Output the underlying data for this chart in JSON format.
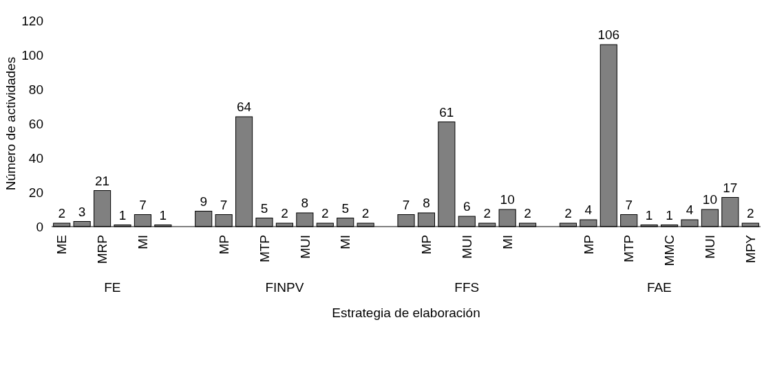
{
  "chart_data": {
    "type": "bar",
    "xlabel": "Estrategia de elaboración",
    "ylabel": "Número de actividades",
    "categories": [
      "ME",
      null,
      "MRP",
      null,
      "MI",
      null,
      null,
      null,
      "MP",
      null,
      "MTP",
      null,
      "MUI",
      null,
      "MI",
      null,
      null,
      null,
      "MP",
      null,
      "MUI",
      null,
      "MI",
      null,
      null,
      null,
      "MP",
      null,
      "MTP",
      null,
      "MMC",
      null,
      "MUI",
      null,
      "MPY"
    ],
    "values": [
      2,
      3,
      21,
      1,
      7,
      1,
      null,
      9,
      7,
      64,
      5,
      2,
      8,
      2,
      5,
      2,
      null,
      7,
      8,
      61,
      6,
      2,
      10,
      2,
      null,
      2,
      4,
      106,
      7,
      1,
      1,
      4,
      10,
      17,
      2
    ],
    "color": "#808080",
    "annotations": [
      "FE",
      "FINPV",
      "FFS",
      "FAE"
    ],
    "ylim": [
      0,
      120
    ],
    "yticks": [
      0,
      20,
      40,
      60,
      80,
      100,
      120
    ],
    "grid": false,
    "data_labels": true
  }
}
